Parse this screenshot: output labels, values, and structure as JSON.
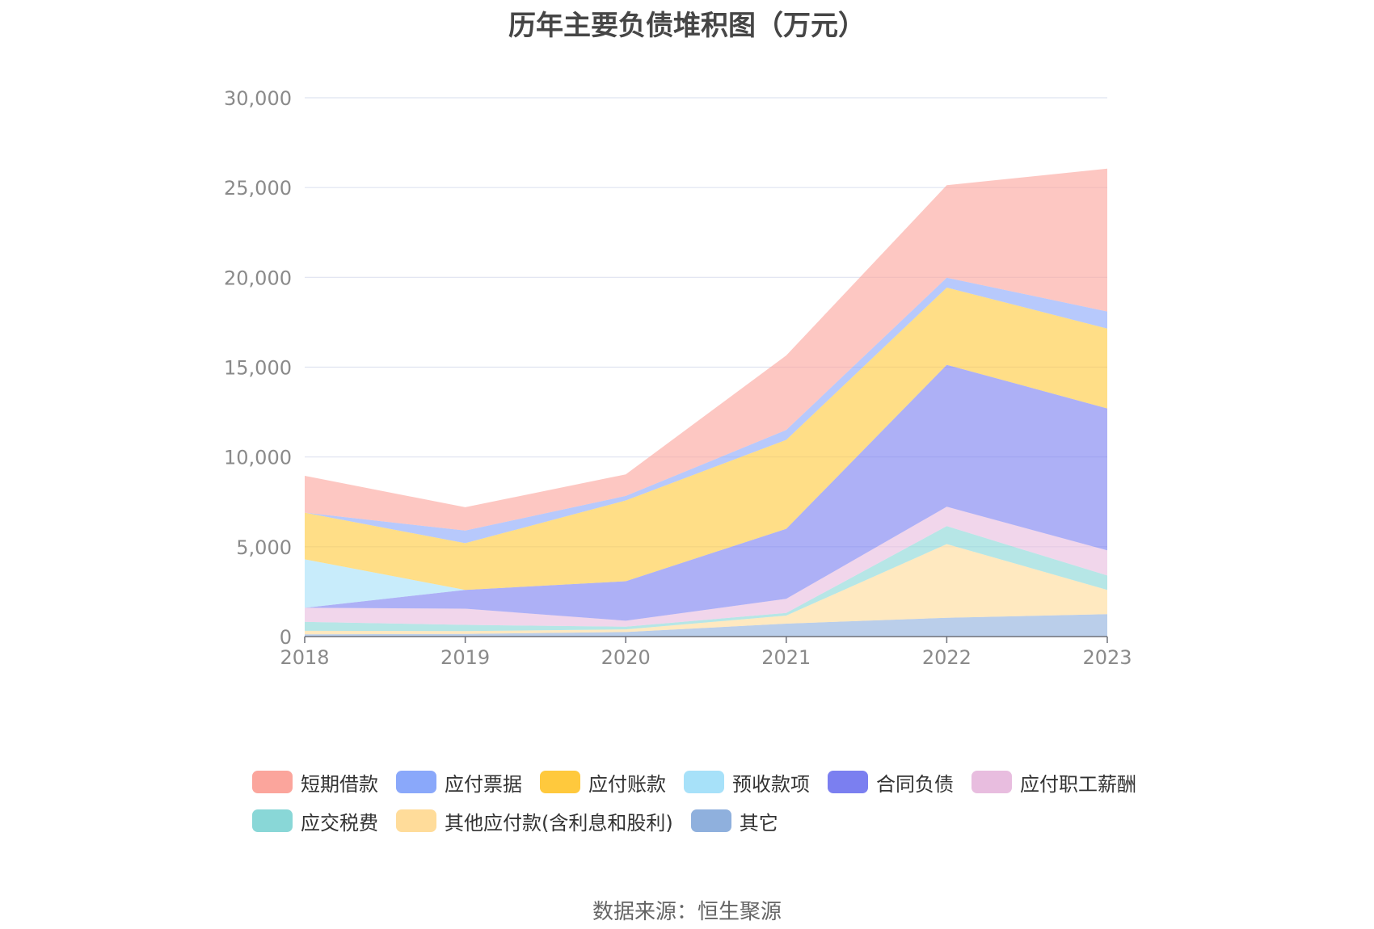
{
  "title": "历年主要负债堆积图（万元）",
  "source": "数据来源：恒生聚源",
  "chart_data": {
    "type": "area",
    "stacked": true,
    "x": [
      "2018",
      "2019",
      "2020",
      "2021",
      "2022",
      "2023"
    ],
    "ylim": [
      0,
      30000
    ],
    "yticks": [
      0,
      5000,
      10000,
      15000,
      20000,
      25000,
      30000
    ],
    "ytick_labels": [
      "0",
      "5,000",
      "10,000",
      "15,000",
      "20,000",
      "25,000",
      "30,000"
    ],
    "grid": true,
    "legend_position": "bottom",
    "series": [
      {
        "name": "其它",
        "color": "#8fb0dd",
        "values": [
          120,
          150,
          250,
          720,
          1050,
          1250
        ]
      },
      {
        "name": "其他应付款(含利息和股利)",
        "color": "#ffdc9a",
        "values": [
          200,
          150,
          150,
          450,
          4100,
          1350
        ]
      },
      {
        "name": "应交税费",
        "color": "#89d7d7",
        "values": [
          500,
          350,
          150,
          150,
          1000,
          800
        ]
      },
      {
        "name": "应付职工薪酬",
        "color": "#e8bddf",
        "values": [
          780,
          900,
          330,
          780,
          1080,
          1400
        ]
      },
      {
        "name": "合同负债",
        "color": "#7b7ff0",
        "values": [
          0,
          1050,
          2200,
          3900,
          7900,
          7900
        ]
      },
      {
        "name": "预收款项",
        "color": "#a7e1f9",
        "values": [
          2700,
          0,
          0,
          0,
          0,
          0
        ]
      },
      {
        "name": "应付账款",
        "color": "#ffc93d",
        "values": [
          2600,
          2600,
          4500,
          4950,
          4300,
          4450
        ]
      },
      {
        "name": "应付票据",
        "color": "#8aa8fa",
        "values": [
          0,
          700,
          250,
          550,
          550,
          950
        ]
      },
      {
        "name": "短期借款",
        "color": "#fba59c",
        "values": [
          2050,
          1300,
          1200,
          4150,
          5150,
          7950
        ]
      }
    ]
  },
  "legend": [
    {
      "label": "短期借款",
      "color": "#fba59c"
    },
    {
      "label": "应付票据",
      "color": "#8aa8fa"
    },
    {
      "label": "应付账款",
      "color": "#ffc93d"
    },
    {
      "label": "预收款项",
      "color": "#a7e1f9"
    },
    {
      "label": "合同负债",
      "color": "#7b7ff0"
    },
    {
      "label": "应付职工薪酬",
      "color": "#e8bddf"
    },
    {
      "label": "应交税费",
      "color": "#89d7d7"
    },
    {
      "label": "其他应付款(含利息和股利)",
      "color": "#ffdc9a"
    },
    {
      "label": "其它",
      "color": "#8fb0dd"
    }
  ]
}
